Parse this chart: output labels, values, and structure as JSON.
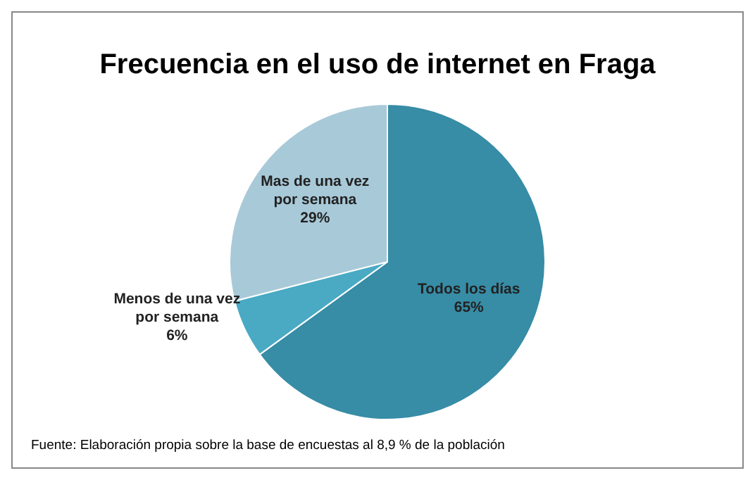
{
  "chart_data": {
    "type": "pie",
    "title": "Frecuencia en el uso de internet en Fraga",
    "categories": [
      "Todos los días",
      "Menos de una vez por semana",
      "Mas de una vez por semana"
    ],
    "values": [
      65,
      6,
      29
    ],
    "colors": [
      "#378ca6",
      "#4aaac4",
      "#a8c9d8"
    ],
    "value_labels": [
      "65%",
      "6%",
      "29%"
    ],
    "annotations": [
      "Fuente: Elaboración propia sobre la base de encuestas al 8,9 % de la población"
    ]
  }
}
